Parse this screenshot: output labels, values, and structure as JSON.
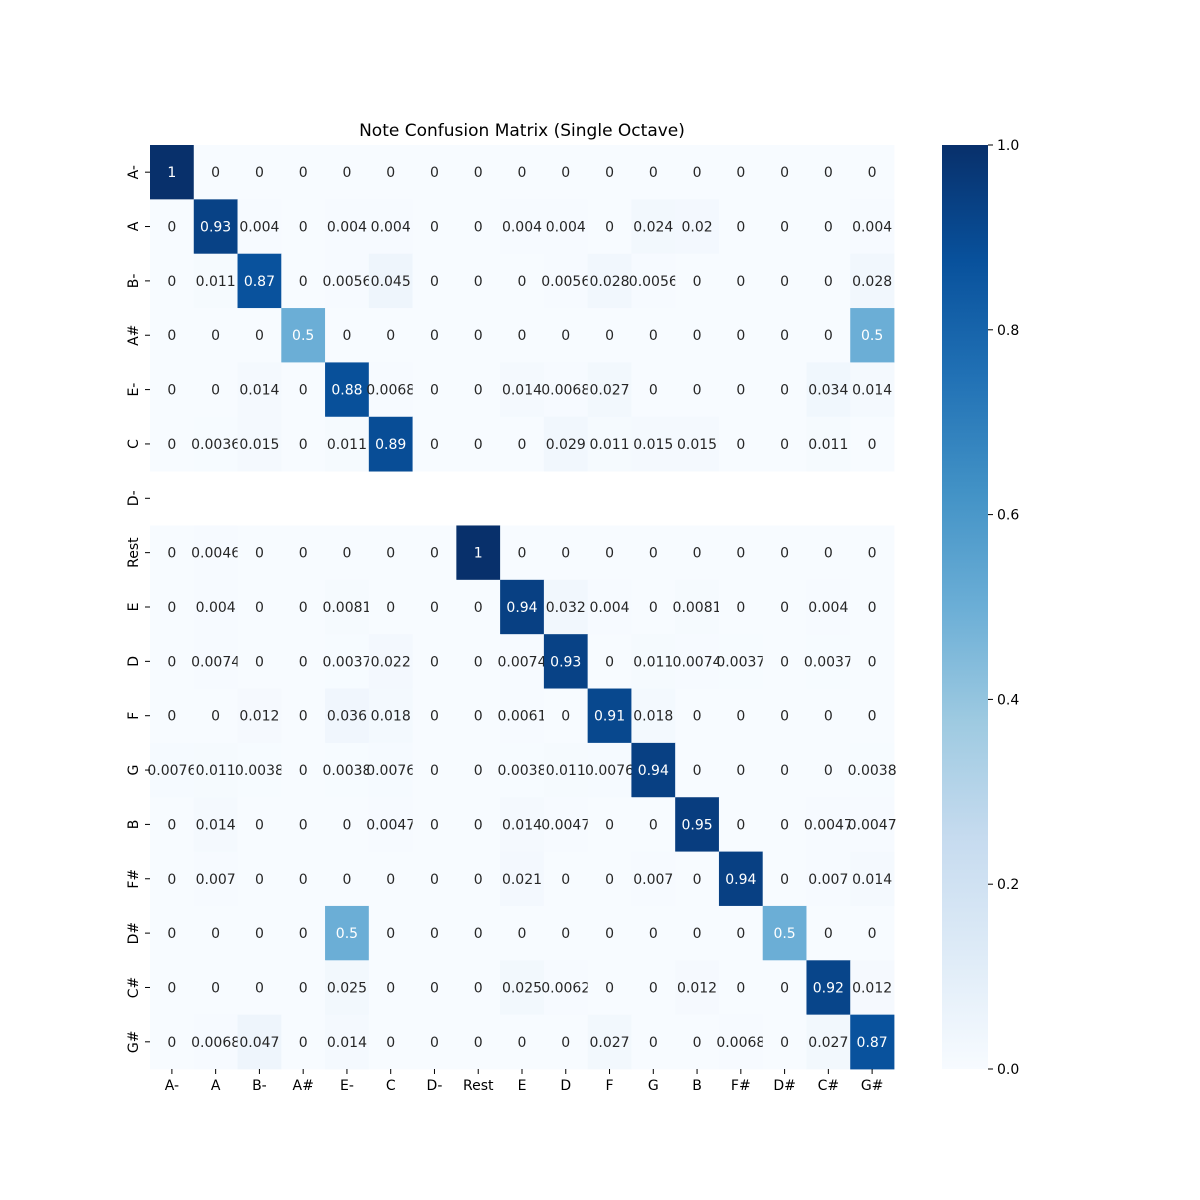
{
  "chart_data": {
    "type": "heatmap",
    "title": "Note Confusion Matrix (Single Octave)",
    "xlabel": "",
    "ylabel": "",
    "colormap": "Blues",
    "colorbar": {
      "range": [
        0.0,
        1.0
      ],
      "ticks": [
        "0.0",
        "0.2",
        "0.4",
        "0.6",
        "0.8",
        "1.0"
      ],
      "low_color": "#f7fbff",
      "high_color": "#08306b"
    },
    "row_labels": [
      "A-",
      "A",
      "B-",
      "A#",
      "E-",
      "C",
      "D-",
      "Rest",
      "E",
      "D",
      "F",
      "G",
      "B",
      "F#",
      "D#",
      "C#",
      "G#"
    ],
    "col_labels": [
      "A-",
      "A",
      "B-",
      "A#",
      "E-",
      "C",
      "D-",
      "Rest",
      "E",
      "D",
      "F",
      "G",
      "B",
      "F#",
      "D#",
      "C#",
      "G#"
    ],
    "cell_labels": [
      [
        "1",
        "0",
        "0",
        "0",
        "0",
        "0",
        "0",
        "0",
        "0",
        "0",
        "0",
        "0",
        "0",
        "0",
        "0",
        "0",
        "0"
      ],
      [
        "0",
        "0.93",
        "0.004",
        "0",
        "0.004",
        "0.004",
        "0",
        "0",
        "0.004",
        "0.004",
        "0",
        "0.024",
        "0.02",
        "0",
        "0",
        "0",
        "0.004"
      ],
      [
        "0",
        "0.011",
        "0.87",
        "0",
        "0.0056",
        "0.045",
        "0",
        "0",
        "0",
        "0.0056",
        "0.028",
        "0.0056",
        "0",
        "0",
        "0",
        "0",
        "0.028"
      ],
      [
        "0",
        "0",
        "0",
        "0.5",
        "0",
        "0",
        "0",
        "0",
        "0",
        "0",
        "0",
        "0",
        "0",
        "0",
        "0",
        "0",
        "0.5"
      ],
      [
        "0",
        "0",
        "0.014",
        "0",
        "0.88",
        "0.0068",
        "0",
        "0",
        "0.014",
        "0.0068",
        "0.027",
        "0",
        "0",
        "0",
        "0",
        "0.034",
        "0.014"
      ],
      [
        "0",
        "0.0036",
        "0.015",
        "0",
        "0.011",
        "0.89",
        "0",
        "0",
        "0",
        "0.029",
        "0.011",
        "0.015",
        "0.015",
        "0",
        "0",
        "0.011",
        "0"
      ],
      null,
      [
        "0",
        "0.0046",
        "0",
        "0",
        "0",
        "0",
        "0",
        "1",
        "0",
        "0",
        "0",
        "0",
        "0",
        "0",
        "0",
        "0",
        "0"
      ],
      [
        "0",
        "0.004",
        "0",
        "0",
        "0.0081",
        "0",
        "0",
        "0",
        "0.94",
        "0.032",
        "0.004",
        "0",
        "0.0081",
        "0",
        "0",
        "0.004",
        "0"
      ],
      [
        "0",
        "0.0074",
        "0",
        "0",
        "0.0037",
        "0.022",
        "0",
        "0",
        "0.0074",
        "0.93",
        "0",
        "0.011",
        "0.0074",
        "0.0037",
        "0",
        "0.0037",
        "0"
      ],
      [
        "0",
        "0",
        "0.012",
        "0",
        "0.036",
        "0.018",
        "0",
        "0",
        "0.0061",
        "0",
        "0.91",
        "0.018",
        "0",
        "0",
        "0",
        "0",
        "0"
      ],
      [
        "0.0076",
        "0.011",
        "0.0038",
        "0",
        "0.0038",
        "0.0076",
        "0",
        "0",
        "0.0038",
        "0.011",
        "0.0076",
        "0.94",
        "0",
        "0",
        "0",
        "0",
        "0.0038"
      ],
      [
        "0",
        "0.014",
        "0",
        "0",
        "0",
        "0.0047",
        "0",
        "0",
        "0.014",
        "0.0047",
        "0",
        "0",
        "0.95",
        "0",
        "0",
        "0.0047",
        "0.0047"
      ],
      [
        "0",
        "0.007",
        "0",
        "0",
        "0",
        "0",
        "0",
        "0",
        "0.021",
        "0",
        "0",
        "0.007",
        "0",
        "0.94",
        "0",
        "0.007",
        "0.014"
      ],
      [
        "0",
        "0",
        "0",
        "0",
        "0.5",
        "0",
        "0",
        "0",
        "0",
        "0",
        "0",
        "0",
        "0",
        "0",
        "0.5",
        "0",
        "0"
      ],
      [
        "0",
        "0",
        "0",
        "0",
        "0.025",
        "0",
        "0",
        "0",
        "0.025",
        "0.0062",
        "0",
        "0",
        "0.012",
        "0",
        "0",
        "0.92",
        "0.012"
      ],
      [
        "0",
        "0.0068",
        "0.047",
        "0",
        "0.014",
        "0",
        "0",
        "0",
        "0",
        "0",
        "0.027",
        "0",
        "0",
        "0.0068",
        "0",
        "0.027",
        "0.87"
      ]
    ]
  }
}
